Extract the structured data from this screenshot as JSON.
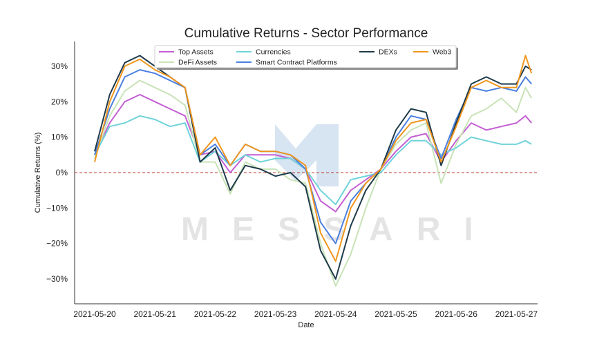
{
  "chart_data": {
    "type": "line",
    "title": "Cumulative Returns - Sector Performance",
    "xlabel": "Date",
    "ylabel": "Cumulative Returns (%)",
    "x_ticks": [
      "2021-05-20",
      "2021-05-21",
      "2021-05-22",
      "2021-05-23",
      "2021-05-24",
      "2021-05-25",
      "2021-05-26",
      "2021-05-27"
    ],
    "y_ticks": [
      -30,
      -20,
      -10,
      0,
      10,
      20,
      30
    ],
    "y_tick_labels": [
      "−30%",
      "−20%",
      "−10%",
      "0%",
      "10%",
      "20%",
      "30%"
    ],
    "xlim": [
      0,
      7.7
    ],
    "ylim": [
      -37,
      37
    ],
    "zero_line": {
      "value": 0,
      "color": "#c0392b"
    },
    "grid": false,
    "legend_position": "top-center",
    "watermark": "MESSARI",
    "x": [
      0.0,
      0.25,
      0.5,
      0.75,
      1.0,
      1.25,
      1.5,
      1.75,
      2.0,
      2.25,
      2.5,
      2.75,
      3.0,
      3.25,
      3.5,
      3.75,
      4.0,
      4.25,
      4.5,
      4.75,
      5.0,
      5.25,
      5.5,
      5.75,
      6.0,
      6.25,
      6.5,
      6.75,
      7.0,
      7.15,
      7.25
    ],
    "series": [
      {
        "name": "Top Assets",
        "color": "#c45ed4",
        "values": [
          5,
          14,
          20,
          22,
          20,
          18,
          16,
          5,
          6,
          0,
          5,
          5,
          5,
          4,
          1,
          -8,
          -11,
          -5,
          -2,
          1,
          6,
          10,
          11,
          3,
          9,
          14,
          12,
          13,
          14,
          16,
          14
        ]
      },
      {
        "name": "DeFi Assets",
        "color": "#c8e3b7",
        "values": [
          4,
          16,
          23,
          26,
          24,
          22,
          19,
          3,
          3,
          -6,
          3,
          1,
          1,
          -2,
          -3,
          -20,
          -32,
          -23,
          -10,
          1,
          8,
          12,
          14,
          -3,
          8,
          16,
          18,
          21,
          17,
          24,
          21
        ]
      },
      {
        "name": "Currencies",
        "color": "#6fd3da",
        "values": [
          5,
          13,
          14,
          16,
          15,
          13,
          14,
          3,
          6,
          2,
          5,
          3,
          4,
          4,
          1,
          -5,
          -9,
          -2,
          -1,
          0,
          5,
          9,
          9,
          5,
          7,
          10,
          9,
          8,
          8,
          9,
          8
        ]
      },
      {
        "name": "Smart Contract Platforms",
        "color": "#4a7fe0",
        "values": [
          5,
          18,
          27,
          29,
          28,
          26,
          24,
          5,
          8,
          2,
          8,
          6,
          6,
          5,
          1,
          -14,
          -20,
          -8,
          -3,
          1,
          10,
          16,
          15,
          4,
          15,
          24,
          23,
          24,
          23,
          27,
          25
        ]
      },
      {
        "name": "DEXs",
        "color": "#1e3a4a",
        "values": [
          6,
          22,
          31,
          33,
          30,
          27,
          24,
          3,
          7,
          -5,
          2,
          1,
          -1,
          0,
          -4,
          -22,
          -30,
          -15,
          -5,
          1,
          12,
          18,
          17,
          2,
          14,
          25,
          27,
          25,
          25,
          30,
          29
        ]
      },
      {
        "name": "Web3",
        "color": "#f0961e",
        "values": [
          3,
          20,
          30,
          32,
          29,
          27,
          24,
          5,
          10,
          2,
          8,
          6,
          6,
          5,
          2,
          -17,
          -25,
          -10,
          -3,
          1,
          9,
          14,
          15,
          3,
          13,
          24,
          26,
          24,
          24,
          33,
          28
        ]
      }
    ]
  }
}
